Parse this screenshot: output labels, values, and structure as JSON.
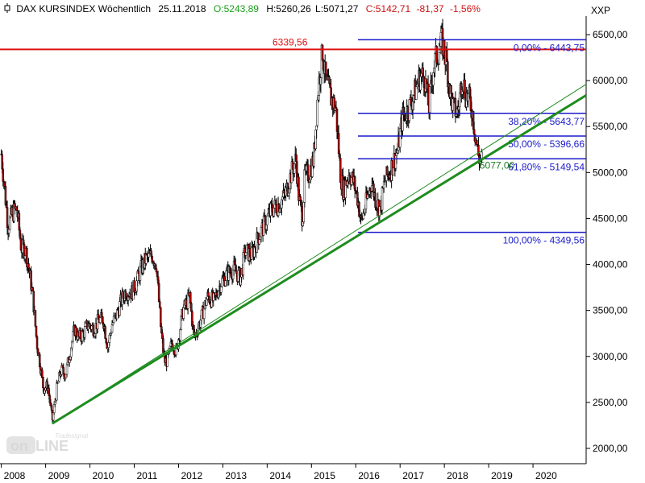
{
  "header": {
    "symbol_icon": "candlestick-icon",
    "title": "DAX KURSINDEX Wöchentlich",
    "date": "25.11.2018",
    "open": "O:5243,89",
    "high": "H:5260,26",
    "low": "L:5071,27",
    "close": "C:5142,71",
    "change": "-81,37",
    "change_pct": "-1,56%",
    "colors": {
      "open": "#16a016",
      "close": "#cc1111",
      "neutral": "#000000"
    }
  },
  "watermark": {
    "text": "Tradesignal online"
  },
  "chart_data": {
    "type": "candlestick",
    "ticker": "XXP",
    "interval": "weekly",
    "y_axis": {
      "min": 1800,
      "max": 6700,
      "ticks": [
        "2000,00",
        "2500,00",
        "3000,00",
        "3500,00",
        "4000,00",
        "4500,00",
        "5000,00",
        "5500,00",
        "6000,00",
        "6500,00"
      ],
      "tick_values": [
        2000,
        2500,
        3000,
        3500,
        4000,
        4500,
        5000,
        5500,
        6000,
        6500
      ]
    },
    "x_axis": {
      "labels": [
        "2008",
        "2009",
        "2010",
        "2011",
        "2012",
        "2013",
        "2014",
        "2015",
        "2016",
        "2017",
        "2018",
        "2019",
        "2020"
      ],
      "range": [
        2007.97,
        2021.2
      ]
    },
    "price_path": [
      [
        2008.0,
        5200
      ],
      [
        2008.07,
        4850
      ],
      [
        2008.15,
        4420
      ],
      [
        2008.25,
        4560
      ],
      [
        2008.35,
        4600
      ],
      [
        2008.45,
        4180
      ],
      [
        2008.55,
        4150
      ],
      [
        2008.65,
        3870
      ],
      [
        2008.72,
        3620
      ],
      [
        2008.8,
        3150
      ],
      [
        2008.88,
        2900
      ],
      [
        2008.95,
        2650
      ],
      [
        2009.05,
        2680
      ],
      [
        2009.15,
        2300
      ],
      [
        2009.25,
        2650
      ],
      [
        2009.35,
        2850
      ],
      [
        2009.45,
        2800
      ],
      [
        2009.55,
        3050
      ],
      [
        2009.65,
        3300
      ],
      [
        2009.75,
        3200
      ],
      [
        2009.85,
        3250
      ],
      [
        2009.95,
        3350
      ],
      [
        2010.1,
        3300
      ],
      [
        2010.2,
        3400
      ],
      [
        2010.3,
        3400
      ],
      [
        2010.4,
        3100
      ],
      [
        2010.5,
        3350
      ],
      [
        2010.6,
        3450
      ],
      [
        2010.7,
        3600
      ],
      [
        2010.8,
        3700
      ],
      [
        2010.95,
        3700
      ],
      [
        2011.05,
        3800
      ],
      [
        2011.15,
        3950
      ],
      [
        2011.25,
        4050
      ],
      [
        2011.4,
        4100
      ],
      [
        2011.5,
        4000
      ],
      [
        2011.6,
        3300
      ],
      [
        2011.68,
        2950
      ],
      [
        2011.75,
        2950
      ],
      [
        2011.85,
        3150
      ],
      [
        2011.95,
        3050
      ],
      [
        2012.1,
        3500
      ],
      [
        2012.25,
        3650
      ],
      [
        2012.35,
        3200
      ],
      [
        2012.5,
        3400
      ],
      [
        2012.65,
        3650
      ],
      [
        2012.8,
        3600
      ],
      [
        2012.95,
        3800
      ],
      [
        2013.1,
        3900
      ],
      [
        2013.25,
        3950
      ],
      [
        2013.4,
        3850
      ],
      [
        2013.5,
        4150
      ],
      [
        2013.65,
        4100
      ],
      [
        2013.8,
        4300
      ],
      [
        2013.95,
        4450
      ],
      [
        2014.1,
        4600
      ],
      [
        2014.25,
        4650
      ],
      [
        2014.4,
        4750
      ],
      [
        2014.55,
        5000
      ],
      [
        2014.65,
        5150
      ],
      [
        2014.72,
        4700
      ],
      [
        2014.8,
        4500
      ],
      [
        2014.85,
        4950
      ],
      [
        2014.95,
        5000
      ],
      [
        2015.05,
        5150
      ],
      [
        2015.15,
        5900
      ],
      [
        2015.25,
        6320
      ],
      [
        2015.32,
        6000
      ],
      [
        2015.45,
        5800
      ],
      [
        2015.55,
        5700
      ],
      [
        2015.65,
        5000
      ],
      [
        2015.72,
        4800
      ],
      [
        2015.85,
        5000
      ],
      [
        2015.95,
        4900
      ],
      [
        2016.05,
        4700
      ],
      [
        2016.12,
        4450
      ],
      [
        2016.25,
        4700
      ],
      [
        2016.35,
        4900
      ],
      [
        2016.45,
        4700
      ],
      [
        2016.55,
        4600
      ],
      [
        2016.65,
        4900
      ],
      [
        2016.8,
        5050
      ],
      [
        2016.95,
        5250
      ],
      [
        2017.05,
        5600
      ],
      [
        2017.2,
        5700
      ],
      [
        2017.35,
        5900
      ],
      [
        2017.45,
        6050
      ],
      [
        2017.55,
        6050
      ],
      [
        2017.65,
        5700
      ],
      [
        2017.75,
        6150
      ],
      [
        2017.85,
        6300
      ],
      [
        2017.95,
        6420
      ],
      [
        2018.05,
        6200
      ],
      [
        2018.12,
        5900
      ],
      [
        2018.2,
        5700
      ],
      [
        2018.3,
        5650
      ],
      [
        2018.4,
        6050
      ],
      [
        2018.48,
        5850
      ],
      [
        2018.55,
        5800
      ],
      [
        2018.62,
        5700
      ],
      [
        2018.7,
        5400
      ],
      [
        2018.78,
        5150
      ],
      [
        2018.85,
        5140
      ]
    ],
    "annotations": [
      {
        "kind": "hline",
        "value": 6339.56,
        "label": "6339,56",
        "color": "#dd1111",
        "x_start": 2007.97,
        "x_end": 2021.2
      },
      {
        "kind": "point_label",
        "x": 2018.85,
        "y": 5077.0,
        "label": "5077,00",
        "color": "#1e7a1e"
      }
    ],
    "fibonacci": {
      "x_start": 2016.05,
      "x_end": 2021.2,
      "color": "#1a1acc",
      "levels": [
        {
          "pct": "0,00%",
          "value": 6443.75,
          "label": "0,00% - 6443,75"
        },
        {
          "pct": "38,20%",
          "value": 5643.77,
          "label": "38,20% - 5643,77"
        },
        {
          "pct": "50,00%",
          "value": 5396.66,
          "label": "50,00% - 5396,66"
        },
        {
          "pct": "61,80%",
          "value": 5149.54,
          "label": "61,80% - 5149,54"
        },
        {
          "pct": "100,00%",
          "value": 4349.56,
          "label": "100,00% - 4349,56"
        }
      ]
    },
    "trendlines": [
      {
        "name": "",
        "color": "#1e8c1e",
        "width": 3,
        "points": [
          [
            2009.15,
            2270
          ],
          [
            2021.2,
            5840
          ]
        ]
      },
      {
        "name": "",
        "color": "#1e8c1e",
        "width": 1,
        "points": [
          [
            2009.15,
            2270
          ],
          [
            2021.2,
            5960
          ]
        ]
      }
    ],
    "grid": false,
    "legend": "none"
  }
}
